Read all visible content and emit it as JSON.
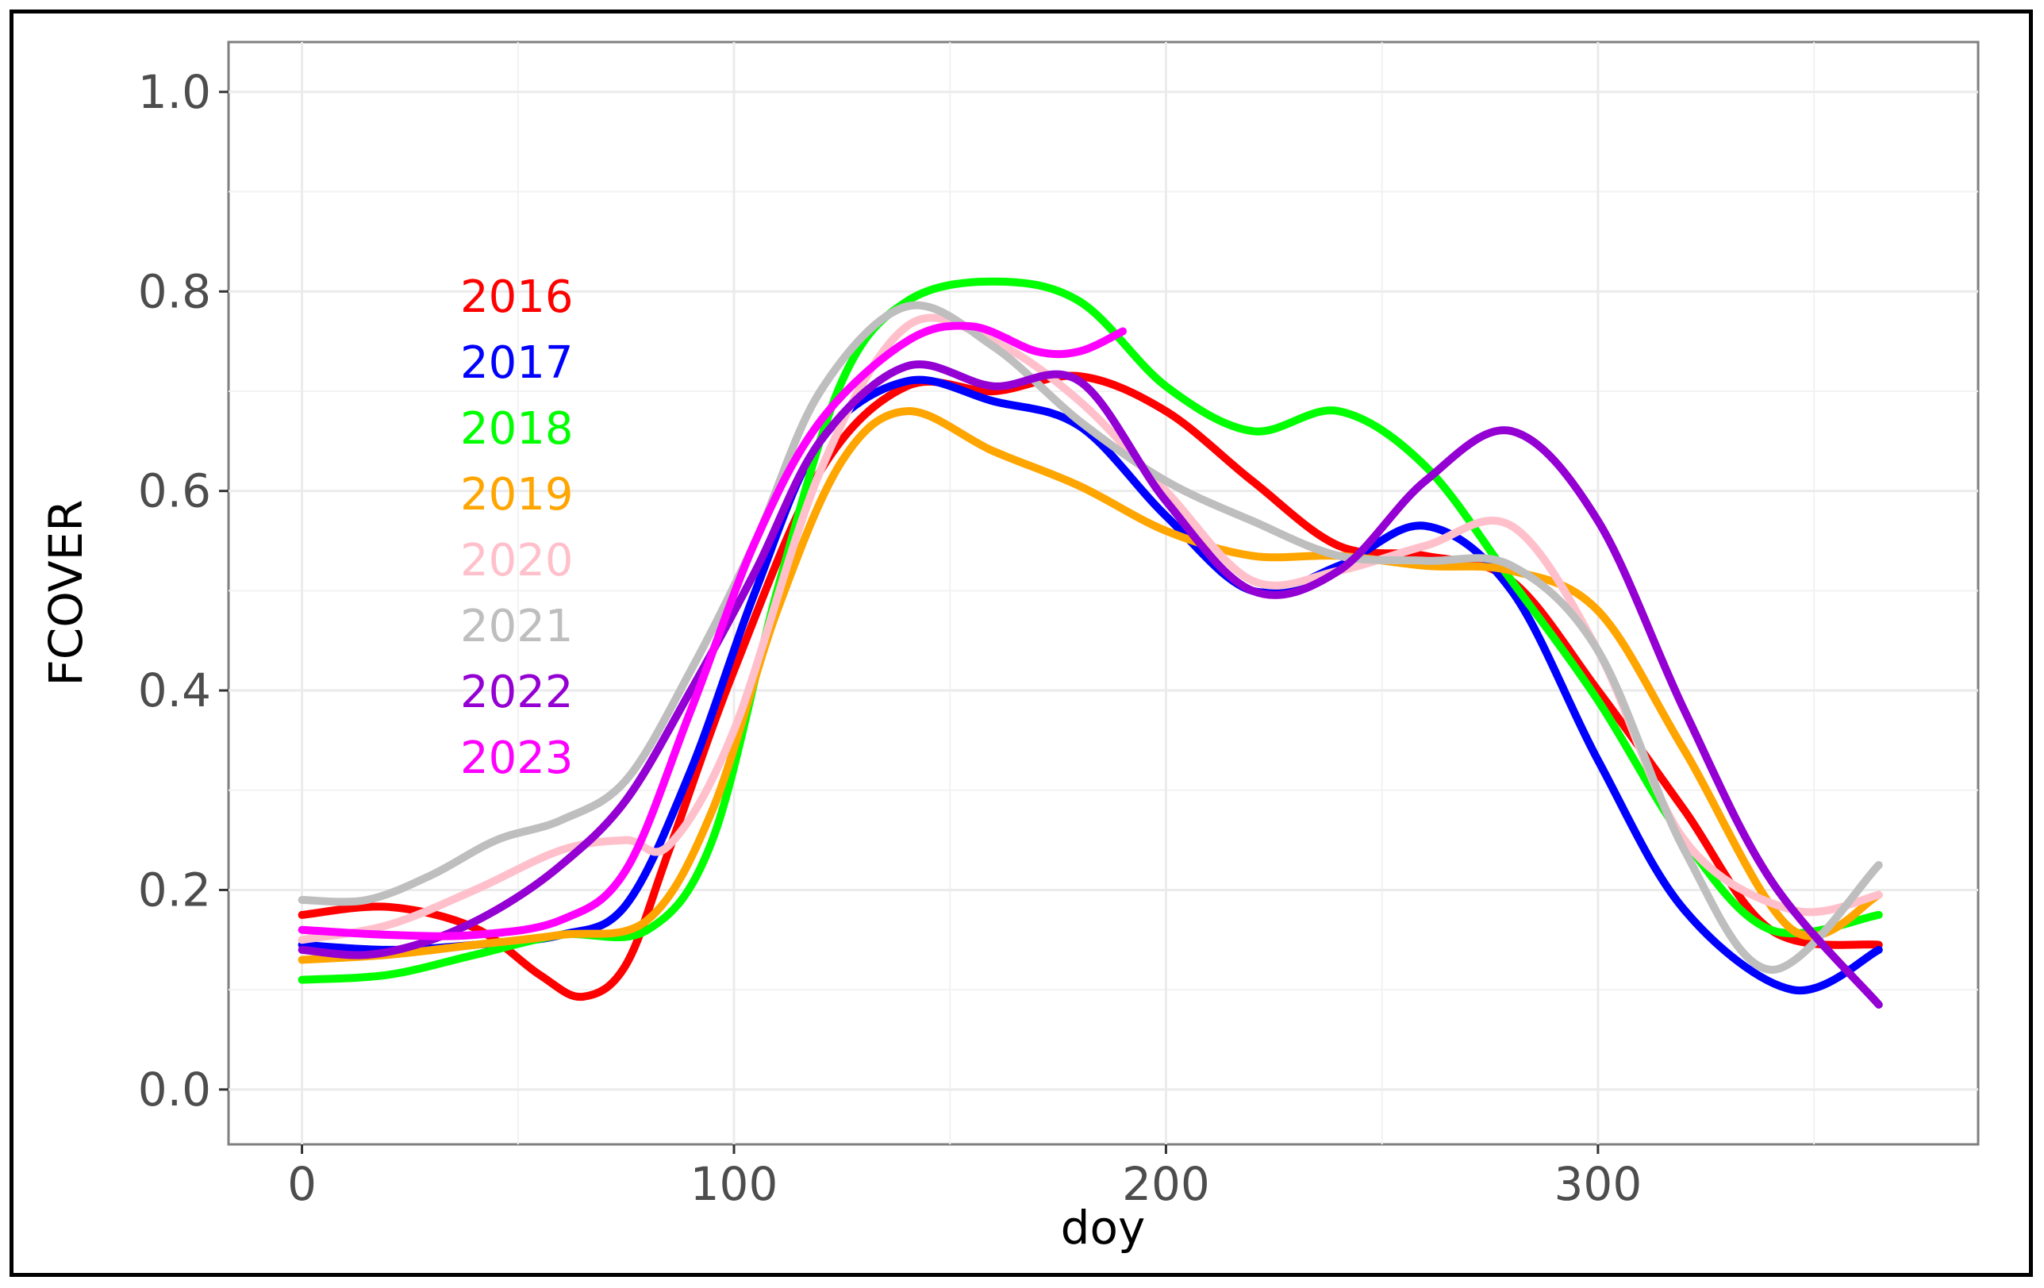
{
  "chart_data": {
    "type": "line",
    "title": "",
    "xlabel": "doy",
    "ylabel": "FCOVER",
    "xlim": [
      -17,
      388
    ],
    "ylim": [
      -0.055,
      1.05
    ],
    "xticks": [
      0,
      100,
      200,
      300
    ],
    "xtick_labels": [
      "0",
      "100",
      "200",
      "300"
    ],
    "yticks": [
      0.0,
      0.2,
      0.4,
      0.6,
      0.8,
      1.0
    ],
    "ytick_labels": [
      "0.0",
      "0.2",
      "0.4",
      "0.6",
      "0.8",
      "1.0"
    ],
    "grid": true,
    "legend_position": "top-left",
    "series": [
      {
        "name": "2016",
        "color": "#ff0000",
        "x": [
          0,
          20,
          40,
          55,
          65,
          75,
          85,
          100,
          120,
          140,
          160,
          180,
          200,
          220,
          240,
          260,
          280,
          300,
          320,
          340,
          365
        ],
        "y": [
          0.175,
          0.183,
          0.162,
          0.115,
          0.093,
          0.125,
          0.24,
          0.42,
          0.62,
          0.705,
          0.7,
          0.715,
          0.68,
          0.61,
          0.545,
          0.535,
          0.51,
          0.4,
          0.28,
          0.16,
          0.145
        ]
      },
      {
        "name": "2017",
        "color": "#0000ff",
        "x": [
          0,
          20,
          40,
          60,
          75,
          90,
          105,
          120,
          140,
          160,
          180,
          200,
          220,
          240,
          260,
          280,
          300,
          320,
          345,
          365
        ],
        "y": [
          0.145,
          0.14,
          0.145,
          0.155,
          0.185,
          0.32,
          0.5,
          0.65,
          0.71,
          0.69,
          0.665,
          0.575,
          0.5,
          0.525,
          0.565,
          0.5,
          0.33,
          0.18,
          0.1,
          0.14
        ]
      },
      {
        "name": "2018",
        "color": "#00ff00",
        "x": [
          0,
          20,
          40,
          60,
          80,
          95,
          110,
          125,
          140,
          160,
          180,
          200,
          220,
          240,
          260,
          280,
          300,
          320,
          340,
          365
        ],
        "y": [
          0.11,
          0.115,
          0.135,
          0.155,
          0.16,
          0.25,
          0.5,
          0.71,
          0.79,
          0.81,
          0.79,
          0.705,
          0.66,
          0.68,
          0.625,
          0.51,
          0.39,
          0.25,
          0.16,
          0.175
        ]
      },
      {
        "name": "2019",
        "color": "#ffa500",
        "x": [
          0,
          20,
          40,
          60,
          80,
          95,
          110,
          125,
          140,
          160,
          180,
          200,
          220,
          240,
          260,
          280,
          300,
          320,
          345,
          365
        ],
        "y": [
          0.13,
          0.135,
          0.145,
          0.155,
          0.17,
          0.28,
          0.48,
          0.63,
          0.68,
          0.64,
          0.605,
          0.56,
          0.535,
          0.535,
          0.525,
          0.52,
          0.48,
          0.34,
          0.16,
          0.195
        ]
      },
      {
        "name": "2020",
        "color": "#ffc0cb",
        "x": [
          0,
          20,
          40,
          60,
          75,
          85,
          100,
          120,
          140,
          160,
          180,
          200,
          220,
          240,
          260,
          280,
          300,
          320,
          345,
          365
        ],
        "y": [
          0.15,
          0.165,
          0.2,
          0.24,
          0.25,
          0.245,
          0.36,
          0.62,
          0.765,
          0.75,
          0.69,
          0.6,
          0.51,
          0.52,
          0.545,
          0.565,
          0.44,
          0.25,
          0.18,
          0.195
        ]
      },
      {
        "name": "2021",
        "color": "#bebebe",
        "x": [
          0,
          15,
          30,
          45,
          60,
          75,
          90,
          105,
          120,
          140,
          160,
          180,
          200,
          220,
          240,
          260,
          280,
          300,
          320,
          340,
          365
        ],
        "y": [
          0.19,
          0.19,
          0.215,
          0.25,
          0.27,
          0.31,
          0.42,
          0.55,
          0.7,
          0.785,
          0.745,
          0.67,
          0.61,
          0.57,
          0.535,
          0.53,
          0.525,
          0.44,
          0.24,
          0.12,
          0.225
        ]
      },
      {
        "name": "2022",
        "color": "#9400d3",
        "x": [
          0,
          15,
          30,
          45,
          60,
          75,
          90,
          105,
          120,
          140,
          160,
          180,
          200,
          220,
          240,
          260,
          280,
          300,
          320,
          340,
          365
        ],
        "y": [
          0.14,
          0.135,
          0.15,
          0.18,
          0.225,
          0.29,
          0.4,
          0.52,
          0.65,
          0.725,
          0.705,
          0.71,
          0.59,
          0.5,
          0.52,
          0.61,
          0.66,
          0.57,
          0.38,
          0.21,
          0.085
        ]
      },
      {
        "name": "2023",
        "color": "#ff00ff",
        "x": [
          0,
          20,
          40,
          60,
          75,
          90,
          105,
          120,
          140,
          155,
          170,
          180,
          190
        ],
        "y": [
          0.16,
          0.155,
          0.155,
          0.17,
          0.22,
          0.38,
          0.55,
          0.67,
          0.75,
          0.765,
          0.74,
          0.74,
          0.76
        ]
      }
    ]
  }
}
